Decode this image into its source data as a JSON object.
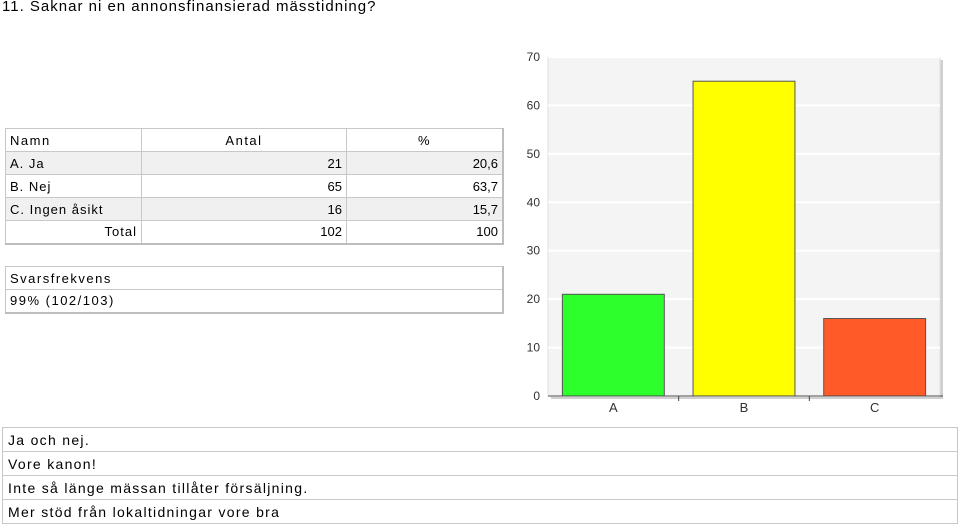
{
  "question": {
    "title": "11. Saknar ni en annonsfinansierad mässtidning?"
  },
  "table": {
    "headers": {
      "name": "Namn",
      "count": "Antal",
      "percent": "%"
    },
    "rows": [
      {
        "name": "A. Ja",
        "count": "21",
        "percent": "20,6"
      },
      {
        "name": "B. Nej",
        "count": "65",
        "percent": "63,7"
      },
      {
        "name": "C. Ingen åsikt",
        "count": "16",
        "percent": "15,7"
      }
    ],
    "total": {
      "label": "Total",
      "count": "102",
      "percent": "100"
    }
  },
  "response": {
    "header": "Svarsfrekvens",
    "value": "99% (102/103)"
  },
  "chart_data": {
    "type": "bar",
    "categories": [
      "A",
      "B",
      "C"
    ],
    "values": [
      21,
      65,
      16
    ],
    "colors": [
      "#2cff2c",
      "#ffff00",
      "#ff5a28"
    ],
    "ylim": [
      0,
      70
    ],
    "yticks": [
      0,
      10,
      20,
      30,
      40,
      50,
      60,
      70
    ],
    "grid": true,
    "title": "",
    "xlabel": "",
    "ylabel": ""
  },
  "comments": [
    "Ja och nej.",
    "Vore kanon!",
    "Inte så länge mässan tillåter försäljning.",
    "Mer stöd från lokaltidningar vore bra"
  ]
}
